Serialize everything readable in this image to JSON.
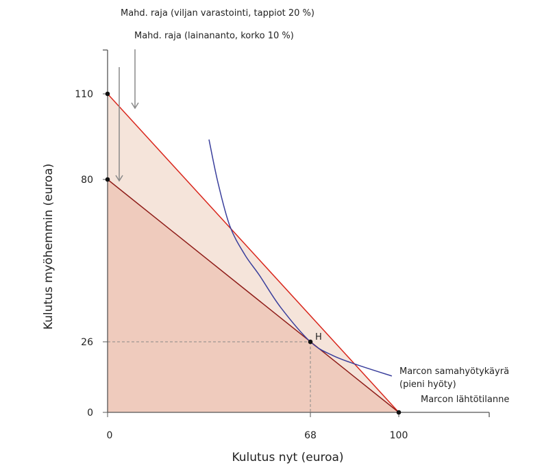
{
  "chart_data": {
    "type": "line",
    "xlabel": "Kulutus nyt (euroa)",
    "ylabel": "Kulutus myöhemmin (euroa)",
    "x_ticks": [
      0,
      68,
      100
    ],
    "y_ticks": [
      0,
      26,
      80,
      110
    ],
    "x_tick_labels": [
      "0",
      "68",
      "100"
    ],
    "y_tick_labels": [
      "0",
      "26",
      "80",
      "110"
    ],
    "series": [
      {
        "name": "Mahd. raja (lainananto, korko 10 %)",
        "color": "#d9261c",
        "points": [
          [
            0,
            110
          ],
          [
            100,
            0
          ]
        ]
      },
      {
        "name": "Mahd. raja (viljan varastointi, tappiot 20 %)",
        "color": "#8e1c18",
        "points": [
          [
            0,
            80
          ],
          [
            100,
            0
          ]
        ]
      },
      {
        "name": "Marcon samahyötykäyrä (pieni hyöty)",
        "color": "#3a3f9c",
        "points": [
          [
            34,
            94
          ],
          [
            37,
            79
          ],
          [
            41,
            64.5
          ],
          [
            46,
            55
          ],
          [
            51,
            48
          ],
          [
            58,
            37.5
          ],
          [
            68,
            26
          ],
          [
            76,
            21
          ],
          [
            85,
            17.5
          ],
          [
            97.5,
            13.4
          ]
        ]
      }
    ],
    "points": [
      {
        "label": "H",
        "x": 68,
        "y": 26
      },
      {
        "label": "",
        "x": 0,
        "y": 110
      },
      {
        "label": "",
        "x": 0,
        "y": 80
      },
      {
        "label": "",
        "x": 100,
        "y": 0
      }
    ],
    "annotations": {
      "storage": "Mahd. raja (viljan varastointi, tappiot 20 %)",
      "lending": "Mahd. raja (lainananto, korko 10 %)",
      "indifference1": "Marcon samahyötykäyrä",
      "indifference2": "(pieni hyöty)",
      "start": "Marcon lähtötilanne",
      "point_h": "H"
    },
    "fill_colors": {
      "lending_area": "#f5e4da",
      "storage_area": "#efcbbd"
    }
  }
}
